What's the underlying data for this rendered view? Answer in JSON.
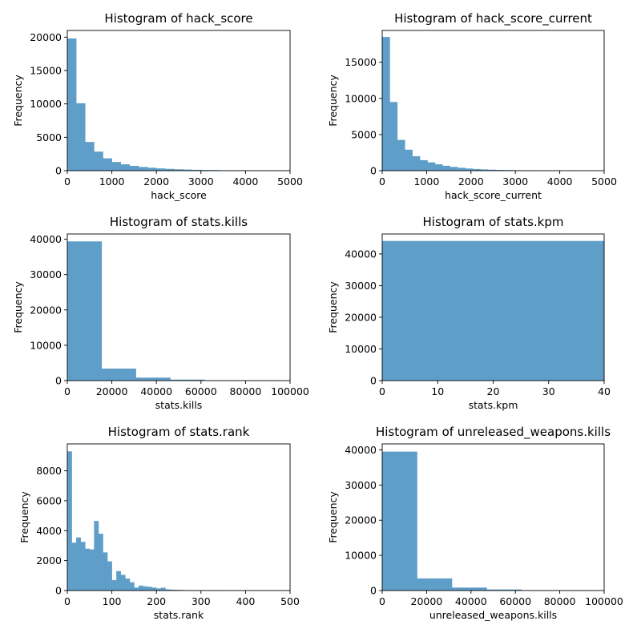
{
  "chart_data": [
    {
      "type": "bar",
      "title": "Histogram of hack_score",
      "xlabel": "hack_score",
      "ylabel": "Frequency",
      "xlim": [
        0,
        5000
      ],
      "ylim": [
        0,
        21000
      ],
      "xticks": [
        0,
        1000,
        2000,
        3000,
        4000,
        5000
      ],
      "yticks": [
        0,
        5000,
        10000,
        15000,
        20000
      ],
      "bin_width": 200,
      "bins": [
        [
          0,
          19800
        ],
        [
          200,
          10100
        ],
        [
          400,
          4300
        ],
        [
          600,
          2850
        ],
        [
          800,
          1850
        ],
        [
          1000,
          1300
        ],
        [
          1200,
          950
        ],
        [
          1400,
          720
        ],
        [
          1600,
          560
        ],
        [
          1800,
          440
        ],
        [
          2000,
          340
        ],
        [
          2200,
          270
        ],
        [
          2400,
          210
        ],
        [
          2600,
          170
        ],
        [
          2800,
          130
        ],
        [
          3000,
          105
        ],
        [
          3200,
          90
        ],
        [
          3400,
          70
        ],
        [
          3600,
          55
        ],
        [
          3800,
          45
        ],
        [
          4000,
          35
        ],
        [
          4200,
          30
        ],
        [
          4400,
          25
        ],
        [
          4600,
          20
        ],
        [
          4800,
          15
        ]
      ]
    },
    {
      "type": "bar",
      "title": "Histogram of hack_score_current",
      "xlabel": "hack_score_current",
      "ylabel": "Frequency",
      "xlim": [
        0,
        5000
      ],
      "ylim": [
        0,
        19400
      ],
      "xticks": [
        0,
        1000,
        2000,
        3000,
        4000,
        5000
      ],
      "yticks": [
        0,
        5000,
        10000,
        15000
      ],
      "bin_width": 170,
      "bins": [
        [
          0,
          18500
        ],
        [
          170,
          9500
        ],
        [
          340,
          4250
        ],
        [
          510,
          2900
        ],
        [
          680,
          2000
        ],
        [
          850,
          1450
        ],
        [
          1020,
          1150
        ],
        [
          1190,
          880
        ],
        [
          1360,
          680
        ],
        [
          1530,
          520
        ],
        [
          1700,
          400
        ],
        [
          1870,
          300
        ],
        [
          2040,
          230
        ],
        [
          2210,
          180
        ],
        [
          2380,
          140
        ],
        [
          2550,
          110
        ],
        [
          2720,
          90
        ],
        [
          2890,
          70
        ],
        [
          3060,
          55
        ],
        [
          3230,
          45
        ],
        [
          3400,
          35
        ],
        [
          3570,
          28
        ],
        [
          3740,
          22
        ],
        [
          3910,
          18
        ],
        [
          4080,
          14
        ],
        [
          4250,
          11
        ],
        [
          4420,
          9
        ],
        [
          4590,
          7
        ],
        [
          4760,
          5
        ]
      ]
    },
    {
      "type": "bar",
      "title": "Histogram of stats.kills",
      "xlabel": "stats.kills",
      "ylabel": "Frequency",
      "xlim": [
        0,
        100000
      ],
      "ylim": [
        0,
        41500
      ],
      "xticks": [
        0,
        20000,
        40000,
        60000,
        80000,
        100000
      ],
      "yticks": [
        0,
        10000,
        20000,
        30000,
        40000
      ],
      "bin_width": 15400,
      "bins": [
        [
          0,
          39400
        ],
        [
          15400,
          3400
        ],
        [
          30800,
          850
        ],
        [
          46200,
          280
        ],
        [
          61600,
          110
        ],
        [
          77000,
          40
        ],
        [
          92400,
          15
        ]
      ]
    },
    {
      "type": "bar",
      "title": "Histogram of stats.kpm",
      "xlabel": "stats.kpm",
      "ylabel": "Frequency",
      "xlim": [
        0,
        40
      ],
      "ylim": [
        0,
        46300
      ],
      "xticks": [
        0,
        10,
        20,
        30,
        40
      ],
      "yticks": [
        0,
        10000,
        20000,
        30000,
        40000
      ],
      "bin_width": 40,
      "bins": [
        [
          0,
          44100
        ]
      ]
    },
    {
      "type": "bar",
      "title": "Histogram of stats.rank",
      "xlabel": "stats.rank",
      "ylabel": "Frequency",
      "xlim": [
        0,
        500
      ],
      "ylim": [
        0,
        9800
      ],
      "xticks": [
        0,
        100,
        200,
        300,
        400,
        500
      ],
      "yticks": [
        0,
        2000,
        4000,
        6000,
        8000
      ],
      "bin_width": 10,
      "bins": [
        [
          0,
          9300
        ],
        [
          10,
          3200
        ],
        [
          20,
          3550
        ],
        [
          30,
          3250
        ],
        [
          40,
          2800
        ],
        [
          50,
          2750
        ],
        [
          60,
          4650
        ],
        [
          70,
          3800
        ],
        [
          80,
          2550
        ],
        [
          90,
          1950
        ],
        [
          100,
          700
        ],
        [
          110,
          1300
        ],
        [
          120,
          1050
        ],
        [
          130,
          800
        ],
        [
          140,
          550
        ],
        [
          150,
          200
        ],
        [
          160,
          330
        ],
        [
          170,
          280
        ],
        [
          180,
          250
        ],
        [
          190,
          200
        ],
        [
          200,
          140
        ],
        [
          210,
          190
        ],
        [
          220,
          80
        ],
        [
          230,
          60
        ],
        [
          240,
          50
        ],
        [
          250,
          40
        ],
        [
          260,
          30
        ],
        [
          270,
          25
        ],
        [
          280,
          20
        ],
        [
          290,
          15
        ],
        [
          300,
          15
        ],
        [
          310,
          10
        ],
        [
          320,
          10
        ],
        [
          330,
          8
        ],
        [
          340,
          8
        ],
        [
          350,
          6
        ],
        [
          360,
          6
        ],
        [
          370,
          5
        ],
        [
          380,
          5
        ],
        [
          390,
          5
        ],
        [
          400,
          4
        ],
        [
          410,
          4
        ],
        [
          420,
          4
        ],
        [
          430,
          3
        ],
        [
          440,
          3
        ],
        [
          450,
          3
        ],
        [
          460,
          3
        ],
        [
          470,
          2
        ],
        [
          480,
          2
        ],
        [
          490,
          2
        ]
      ]
    },
    {
      "type": "bar",
      "title": "Histogram of unreleased_weapons.kills",
      "xlabel": "unreleased_weapons.kills",
      "ylabel": "Frequency",
      "xlim": [
        0,
        100000
      ],
      "ylim": [
        0,
        41700
      ],
      "xticks": [
        0,
        20000,
        40000,
        60000,
        80000,
        100000
      ],
      "yticks": [
        0,
        10000,
        20000,
        30000,
        40000
      ],
      "bin_width": 15700,
      "bins": [
        [
          0,
          39500
        ],
        [
          15700,
          3450
        ],
        [
          31400,
          850
        ],
        [
          47100,
          300
        ],
        [
          62800,
          110
        ],
        [
          78500,
          40
        ],
        [
          94200,
          15
        ]
      ]
    }
  ],
  "colors": {
    "bar": "#5f9ec8",
    "axis": "#000000",
    "background": "#ffffff"
  }
}
